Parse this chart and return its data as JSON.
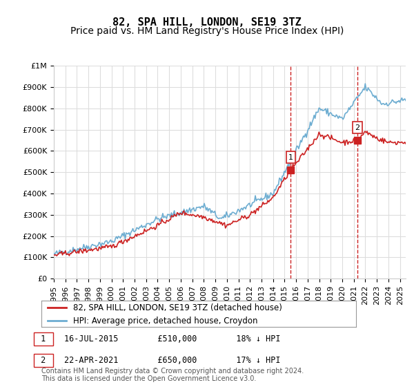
{
  "title": "82, SPA HILL, LONDON, SE19 3TZ",
  "subtitle": "Price paid vs. HM Land Registry's House Price Index (HPI)",
  "ylim": [
    0,
    1000000
  ],
  "yticks": [
    0,
    100000,
    200000,
    300000,
    400000,
    500000,
    600000,
    700000,
    800000,
    900000,
    1000000
  ],
  "ytick_labels": [
    "£0",
    "£100K",
    "£200K",
    "£300K",
    "£400K",
    "£500K",
    "£600K",
    "£700K",
    "£800K",
    "£900K",
    "£1M"
  ],
  "xtick_years": [
    1995,
    1996,
    1997,
    1998,
    1999,
    2000,
    2001,
    2002,
    2003,
    2004,
    2005,
    2006,
    2007,
    2008,
    2009,
    2010,
    2011,
    2012,
    2013,
    2014,
    2015,
    2016,
    2017,
    2018,
    2019,
    2020,
    2021,
    2022,
    2023,
    2024,
    2025
  ],
  "hpi_color": "#6dadd1",
  "price_color": "#cc2222",
  "vline_color": "#cc2222",
  "grid_color": "#dddddd",
  "background_color": "#ffffff",
  "sale1_x": 2015.54,
  "sale1_y": 510000,
  "sale1_label": "1",
  "sale2_x": 2021.31,
  "sale2_y": 650000,
  "sale2_label": "2",
  "legend_entry1": "82, SPA HILL, LONDON, SE19 3TZ (detached house)",
  "legend_entry2": "HPI: Average price, detached house, Croydon",
  "annotation1": "16-JUL-2015        £510,000        18% ↓ HPI",
  "annotation2": "22-APR-2021        £650,000        17% ↓ HPI",
  "footnote": "Contains HM Land Registry data © Crown copyright and database right 2024.\nThis data is licensed under the Open Government Licence v3.0.",
  "title_fontsize": 11,
  "subtitle_fontsize": 10,
  "tick_fontsize": 8,
  "legend_fontsize": 8.5,
  "annotation_fontsize": 8.5,
  "footnote_fontsize": 7
}
